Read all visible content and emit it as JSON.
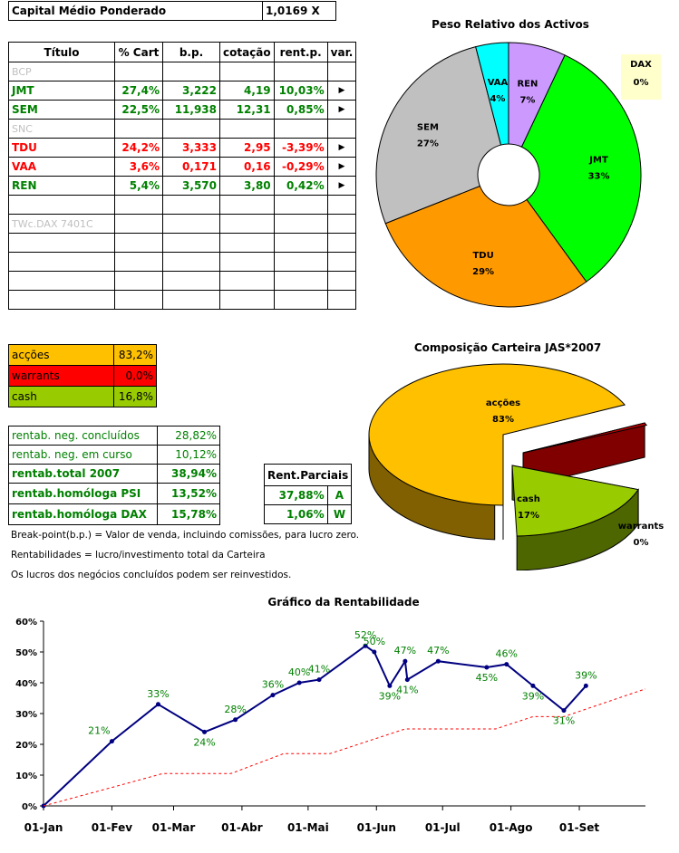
{
  "capital": {
    "label": "Capital Médio Ponderado",
    "value": "1,0169 X"
  },
  "portfolio": {
    "headers": [
      "Título",
      "% Cart",
      "b.p.",
      "cotação",
      "rent.p.",
      "var."
    ],
    "rows": [
      {
        "titulo": "BCP",
        "cart": "",
        "bp": "",
        "cot": "",
        "rent": "",
        "var": "",
        "color": "#c0c0c0"
      },
      {
        "titulo": "JMT",
        "cart": "27,4%",
        "bp": "3,222",
        "cot": "4,19",
        "rent": "10,03%",
        "var": "▶",
        "color": "#008000"
      },
      {
        "titulo": "SEM",
        "cart": "22,5%",
        "bp": "11,938",
        "cot": "12,31",
        "rent": "0,85%",
        "var": "▶",
        "color": "#008000"
      },
      {
        "titulo": "SNC",
        "cart": "",
        "bp": "",
        "cot": "",
        "rent": "",
        "var": "",
        "color": "#c0c0c0"
      },
      {
        "titulo": "TDU",
        "cart": "24,2%",
        "bp": "3,333",
        "cot": "2,95",
        "rent": "-3,39%",
        "var": "▶",
        "color": "#ff0000"
      },
      {
        "titulo": "VAA",
        "cart": "3,6%",
        "bp": "0,171",
        "cot": "0,16",
        "rent": "-0,29%",
        "var": "▶",
        "color": "#ff0000"
      },
      {
        "titulo": "REN",
        "cart": "5,4%",
        "bp": "3,570",
        "cot": "3,80",
        "rent": "0,42%",
        "var": "▶",
        "color": "#008000"
      },
      {
        "titulo": "",
        "cart": "",
        "bp": "",
        "cot": "",
        "rent": "",
        "var": "",
        "color": "#000"
      },
      {
        "titulo": "TWc.DAX 7401C",
        "cart": "",
        "bp": "",
        "cot": "",
        "rent": "",
        "var": "",
        "color": "#c0c0c0"
      },
      {
        "titulo": "",
        "cart": "",
        "bp": "",
        "cot": "",
        "rent": "",
        "var": "",
        "color": "#000"
      },
      {
        "titulo": "",
        "cart": "",
        "bp": "",
        "cot": "",
        "rent": "",
        "var": "",
        "color": "#000"
      },
      {
        "titulo": "",
        "cart": "",
        "bp": "",
        "cot": "",
        "rent": "",
        "var": "",
        "color": "#000"
      },
      {
        "titulo": "",
        "cart": "",
        "bp": "",
        "cot": "",
        "rent": "",
        "var": "",
        "color": "#000"
      }
    ]
  },
  "composition": [
    {
      "label": "acções",
      "value": "83,2%",
      "bg": "#ffc000",
      "color": "#000"
    },
    {
      "label": "warrants",
      "value": "0,0%",
      "bg": "#ff0000",
      "color": "#000"
    },
    {
      "label": "cash",
      "value": "16,8%",
      "bg": "#99cc00",
      "color": "#000"
    }
  ],
  "returns": [
    {
      "label": "rentab. neg. concluídos",
      "value": "28,82%",
      "bold": false
    },
    {
      "label": "rentab. neg. em curso",
      "value": "10,12%",
      "bold": false
    },
    {
      "label": "rentab.total 2007",
      "value": "38,94%",
      "bold": true
    },
    {
      "label": "rentab.homóloga PSI",
      "value": "13,52%",
      "bold": true
    },
    {
      "label": "rentab.homóloga DAX",
      "value": "15,78%",
      "bold": true
    }
  ],
  "partials": {
    "header": "Rent.Parciais",
    "rows": [
      {
        "value": "37,88%",
        "code": "A"
      },
      {
        "value": "1,06%",
        "code": "W"
      }
    ]
  },
  "notes": [
    "Break-point(b.p.) = Valor de venda, incluindo comissões, para lucro zero.",
    "Rentabilidades = lucro/investimento total da Carteira",
    "Os lucros dos negócios concluídos podem ser reinvestidos."
  ],
  "chart_data": [
    {
      "type": "pie",
      "title": "Peso Relativo dos Activos",
      "labels": [
        "REN",
        "JMT",
        "TDU",
        "SEM",
        "VAA"
      ],
      "values": [
        7,
        33,
        29,
        27,
        4
      ],
      "value_labels": [
        "7%",
        "33%",
        "29%",
        "27%",
        "4%"
      ],
      "colors": [
        "#cc99ff",
        "#00ff00",
        "#ff9900",
        "#c0c0c0",
        "#00ffff"
      ],
      "legend": {
        "label": "DAX",
        "value": "0%",
        "position": "top-right"
      }
    },
    {
      "type": "pie",
      "title": "Composição Carteira JAS*2007",
      "labels": [
        "acções",
        "cash",
        "warrants"
      ],
      "values": [
        83,
        17,
        0
      ],
      "value_labels": [
        "83%",
        "17%",
        "0%"
      ],
      "colors": [
        "#ffc000",
        "#99cc00",
        "#c00000"
      ]
    },
    {
      "type": "line",
      "title": "Gráfico da Rentabilidade",
      "x_ticks": [
        "01-Jan",
        "01-Fev",
        "01-Mar",
        "01-Abr",
        "01-Mai",
        "01-Jun",
        "01-Jul",
        "01-Ago",
        "01-Set"
      ],
      "y_ticks": [
        "0%",
        "10%",
        "20%",
        "30%",
        "40%",
        "50%",
        "60%"
      ],
      "ylim": [
        0,
        60
      ],
      "grid": false,
      "series": [
        {
          "color": "#000080",
          "points": [
            {
              "x": "2007-01-01",
              "y": 0,
              "label": ""
            },
            {
              "x": "2007-02-01",
              "y": 21,
              "label": "21%"
            },
            {
              "x": "2007-02-22",
              "y": 33,
              "label": "33%"
            },
            {
              "x": "2007-03-15",
              "y": 24,
              "label": "24%"
            },
            {
              "x": "2007-03-29",
              "y": 28,
              "label": "28%"
            },
            {
              "x": "2007-04-15",
              "y": 36,
              "label": "36%"
            },
            {
              "x": "2007-04-27",
              "y": 40,
              "label": "40%"
            },
            {
              "x": "2007-05-06",
              "y": 41,
              "label": "41%"
            },
            {
              "x": "2007-05-27",
              "y": 52,
              "label": "52%"
            },
            {
              "x": "2007-05-31",
              "y": 50,
              "label": "50%"
            },
            {
              "x": "2007-06-07",
              "y": 39,
              "label": "39%"
            },
            {
              "x": "2007-06-14",
              "y": 47,
              "label": "47%"
            },
            {
              "x": "2007-06-15",
              "y": 41,
              "label": "41%"
            },
            {
              "x": "2007-06-29",
              "y": 47,
              "label": "47%"
            },
            {
              "x": "2007-07-21",
              "y": 45,
              "label": "45%"
            },
            {
              "x": "2007-07-30",
              "y": 46,
              "label": "46%"
            },
            {
              "x": "2007-08-11",
              "y": 39,
              "label": "39%"
            },
            {
              "x": "2007-08-25",
              "y": 31,
              "label": "31%"
            },
            {
              "x": "2007-09-04",
              "y": 39,
              "label": "39%"
            }
          ]
        },
        {
          "color": "#ff0000",
          "style": "dashed",
          "points": [
            {
              "x": "2007-01-01",
              "y": 0
            },
            {
              "x": "2007-02-01",
              "y": 6
            },
            {
              "x": "2007-02-24",
              "y": 10.5
            },
            {
              "x": "2007-03-27",
              "y": 10.5
            },
            {
              "x": "2007-04-20",
              "y": 17
            },
            {
              "x": "2007-05-11",
              "y": 17
            },
            {
              "x": "2007-06-14",
              "y": 25
            },
            {
              "x": "2007-07-25",
              "y": 25
            },
            {
              "x": "2007-08-11",
              "y": 29
            },
            {
              "x": "2007-08-25",
              "y": 29
            },
            {
              "x": "2007-10-01",
              "y": 38
            }
          ]
        }
      ]
    }
  ]
}
